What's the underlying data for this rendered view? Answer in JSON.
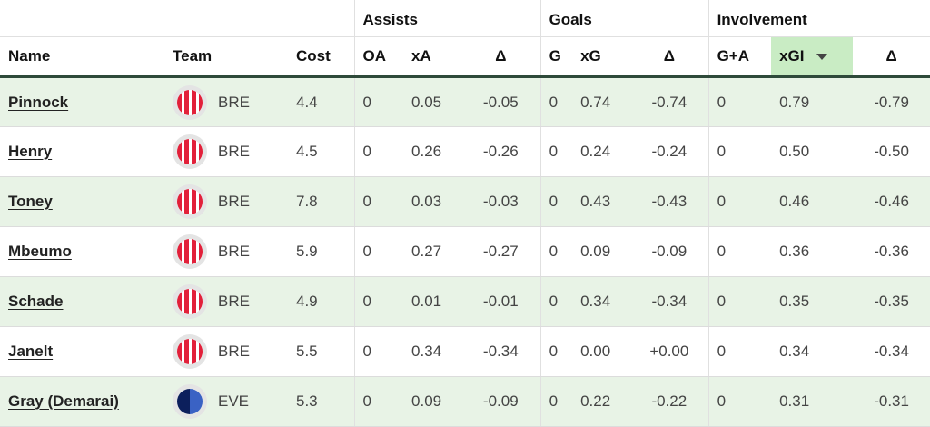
{
  "groups": {
    "assists": "Assists",
    "goals": "Goals",
    "involvement": "Involvement"
  },
  "columns": {
    "name": "Name",
    "team": "Team",
    "cost": "Cost",
    "oa": "OA",
    "xa": "xA",
    "delta_a": "Δ",
    "g": "G",
    "xg": "xG",
    "delta_g": "Δ",
    "ga": "G+A",
    "xgi": "xGI",
    "delta_i": "Δ"
  },
  "sort": {
    "column": "xgi",
    "direction": "descending",
    "icon": "caret-down-icon"
  },
  "colors": {
    "odd_row": "#e8f3e6",
    "sorted_header": "#c9ecc4",
    "header_rule": "#2e4a3a",
    "brentford_red": "#e2203a",
    "everton_blue": "#0c1f5c"
  },
  "rows": [
    {
      "name": "Pinnock",
      "team": "BRE",
      "kit": "brentford-kit-icon",
      "cost": "4.4",
      "oa": "0",
      "xa": "0.05",
      "delta_a": "-0.05",
      "g": "0",
      "xg": "0.74",
      "delta_g": "-0.74",
      "ga": "0",
      "xgi": "0.79",
      "delta_i": "-0.79"
    },
    {
      "name": "Henry",
      "team": "BRE",
      "kit": "brentford-kit-icon",
      "cost": "4.5",
      "oa": "0",
      "xa": "0.26",
      "delta_a": "-0.26",
      "g": "0",
      "xg": "0.24",
      "delta_g": "-0.24",
      "ga": "0",
      "xgi": "0.50",
      "delta_i": "-0.50"
    },
    {
      "name": "Toney",
      "team": "BRE",
      "kit": "brentford-kit-icon",
      "cost": "7.8",
      "oa": "0",
      "xa": "0.03",
      "delta_a": "-0.03",
      "g": "0",
      "xg": "0.43",
      "delta_g": "-0.43",
      "ga": "0",
      "xgi": "0.46",
      "delta_i": "-0.46"
    },
    {
      "name": "Mbeumo",
      "team": "BRE",
      "kit": "brentford-kit-icon",
      "cost": "5.9",
      "oa": "0",
      "xa": "0.27",
      "delta_a": "-0.27",
      "g": "0",
      "xg": "0.09",
      "delta_g": "-0.09",
      "ga": "0",
      "xgi": "0.36",
      "delta_i": "-0.36"
    },
    {
      "name": "Schade",
      "team": "BRE",
      "kit": "brentford-kit-icon",
      "cost": "4.9",
      "oa": "0",
      "xa": "0.01",
      "delta_a": "-0.01",
      "g": "0",
      "xg": "0.34",
      "delta_g": "-0.34",
      "ga": "0",
      "xgi": "0.35",
      "delta_i": "-0.35"
    },
    {
      "name": "Janelt",
      "team": "BRE",
      "kit": "brentford-kit-icon",
      "cost": "5.5",
      "oa": "0",
      "xa": "0.34",
      "delta_a": "-0.34",
      "g": "0",
      "xg": "0.00",
      "delta_g": "+0.00",
      "ga": "0",
      "xgi": "0.34",
      "delta_i": "-0.34"
    },
    {
      "name": "Gray (Demarai)",
      "team": "EVE",
      "kit": "everton-kit-icon",
      "cost": "5.3",
      "oa": "0",
      "xa": "0.09",
      "delta_a": "-0.09",
      "g": "0",
      "xg": "0.22",
      "delta_g": "-0.22",
      "ga": "0",
      "xgi": "0.31",
      "delta_i": "-0.31"
    }
  ]
}
